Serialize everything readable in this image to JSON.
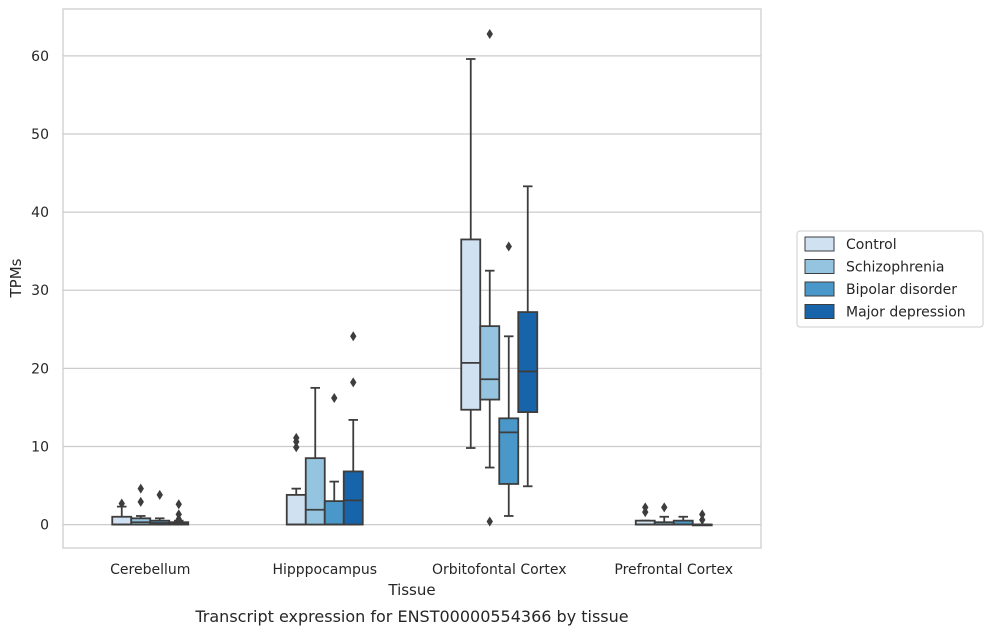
{
  "caption": "Transcript expression for ENST00000554366 by tissue",
  "chart_data": {
    "type": "boxplot",
    "xlabel": "Tissue",
    "ylabel": "TPMs",
    "ylim": [
      -3,
      66
    ],
    "yticks": [
      0,
      10,
      20,
      30,
      40,
      50,
      60
    ],
    "grid": true,
    "legend_position": "right",
    "categories": [
      "Cerebellum",
      "Hipppocampus",
      "Orbitofontal Cortex",
      "Prefrontal Cortex"
    ],
    "series": [
      {
        "name": "Control",
        "color": "#d0e1f2",
        "boxes": [
          {
            "whislo": 0,
            "q1": 0,
            "med": 0,
            "q3": 1.0,
            "whishi": 2.3,
            "fliers": [
              2.7
            ]
          },
          {
            "whislo": 0,
            "q1": 0,
            "med": 0,
            "q3": 3.8,
            "whishi": 4.6,
            "fliers": [
              9.9,
              10.6,
              11.1
            ]
          },
          {
            "whislo": 9.8,
            "q1": 14.7,
            "med": 20.7,
            "q3": 36.5,
            "whishi": 59.6,
            "fliers": []
          },
          {
            "whislo": 0,
            "q1": 0,
            "med": 0,
            "q3": 0.5,
            "whishi": 0.5,
            "fliers": [
              1.6,
              2.2
            ]
          }
        ]
      },
      {
        "name": "Schizophrenia",
        "color": "#94c4df",
        "boxes": [
          {
            "whislo": 0,
            "q1": 0,
            "med": 0.3,
            "q3": 0.8,
            "whishi": 1.1,
            "fliers": [
              2.9,
              4.6
            ]
          },
          {
            "whislo": 0,
            "q1": 0,
            "med": 1.9,
            "q3": 8.5,
            "whishi": 17.5,
            "fliers": []
          },
          {
            "whislo": 7.3,
            "q1": 16.0,
            "med": 18.6,
            "q3": 25.4,
            "whishi": 32.5,
            "fliers": [
              0.4,
              62.8
            ]
          },
          {
            "whislo": 0,
            "q1": 0,
            "med": 0,
            "q3": 0.3,
            "whishi": 1.0,
            "fliers": [
              2.2
            ]
          }
        ]
      },
      {
        "name": "Bipolar disorder",
        "color": "#4a98c9",
        "boxes": [
          {
            "whislo": 0,
            "q1": 0,
            "med": 0.2,
            "q3": 0.5,
            "whishi": 0.8,
            "fliers": [
              3.8
            ]
          },
          {
            "whislo": 0,
            "q1": 0,
            "med": 0,
            "q3": 3.0,
            "whishi": 5.5,
            "fliers": [
              16.2
            ]
          },
          {
            "whislo": 1.1,
            "q1": 5.2,
            "med": 11.8,
            "q3": 13.6,
            "whishi": 24.1,
            "fliers": [
              35.6
            ]
          },
          {
            "whislo": 0,
            "q1": 0,
            "med": 0,
            "q3": 0.5,
            "whishi": 1.0,
            "fliers": []
          }
        ]
      },
      {
        "name": "Major depression",
        "color": "#1764ab",
        "boxes": [
          {
            "whislo": 0,
            "q1": 0,
            "med": 0.1,
            "q3": 0.3,
            "whishi": 0.5,
            "fliers": [
              0.7,
              1.3,
              2.6
            ]
          },
          {
            "whislo": 0,
            "q1": 0,
            "med": 3.1,
            "q3": 6.8,
            "whishi": 13.4,
            "fliers": [
              18.2,
              24.1
            ]
          },
          {
            "whislo": 4.9,
            "q1": 14.4,
            "med": 19.6,
            "q3": 27.2,
            "whishi": 43.3,
            "fliers": []
          },
          {
            "whislo": 0,
            "q1": 0,
            "med": 0,
            "q3": 0,
            "whishi": 0,
            "fliers": [
              0.6,
              1.3
            ]
          }
        ]
      }
    ]
  }
}
